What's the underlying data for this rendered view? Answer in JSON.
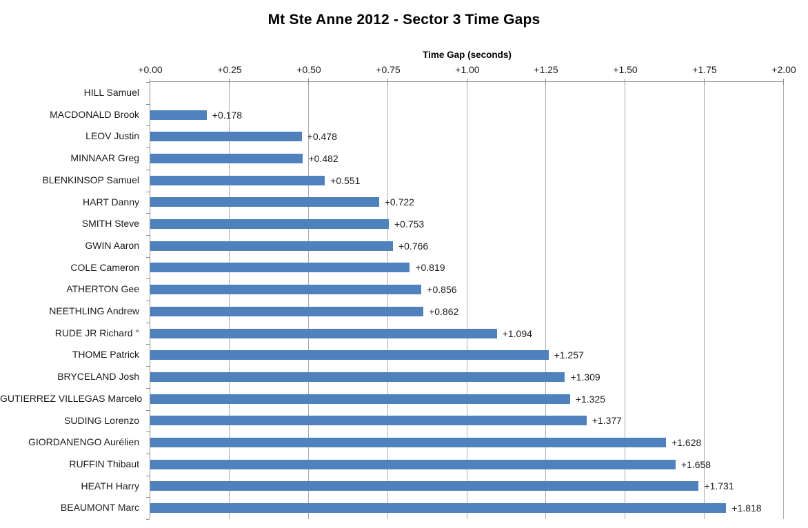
{
  "chart_data": {
    "type": "bar",
    "orientation": "horizontal",
    "title": "Mt Ste Anne 2012 - Sector 3 Time Gaps",
    "xlabel": "Time Gap (seconds)",
    "ylabel": "",
    "xlim": [
      0,
      2.0
    ],
    "x_ticks": [
      "+0.00",
      "+0.25",
      "+0.50",
      "+0.75",
      "+1.00",
      "+1.25",
      "+1.50",
      "+1.75",
      "+2.00"
    ],
    "grid": true,
    "legend": false,
    "bar_color": "#4F81BD",
    "categories": [
      "HILL Samuel",
      "MACDONALD Brook",
      "LEOV Justin",
      "MINNAAR Greg",
      "BLENKINSOP Samuel",
      "HART Danny",
      "SMITH Steve",
      "GWIN Aaron",
      "COLE Cameron",
      "ATHERTON Gee",
      "NEETHLING Andrew",
      "RUDE JR Richard °",
      "THOME Patrick",
      "BRYCELAND Josh",
      "GUTIERREZ VILLEGAS Marcelo",
      "SUDING Lorenzo",
      "GIORDANENGO Aurélien",
      "RUFFIN Thibaut",
      "HEATH Harry",
      "BEAUMONT Marc"
    ],
    "values": [
      0,
      0.178,
      0.478,
      0.482,
      0.551,
      0.722,
      0.753,
      0.766,
      0.819,
      0.856,
      0.862,
      1.094,
      1.257,
      1.309,
      1.325,
      1.377,
      1.628,
      1.658,
      1.731,
      1.818
    ],
    "value_labels": [
      "",
      "+0.178",
      "+0.478",
      "+0.482",
      "+0.551",
      "+0.722",
      "+0.753",
      "+0.766",
      "+0.819",
      "+0.856",
      "+0.862",
      "+1.094",
      "+1.257",
      "+1.309",
      "+1.325",
      "+1.377",
      "+1.628",
      "+1.658",
      "+1.731",
      "+1.818"
    ]
  }
}
